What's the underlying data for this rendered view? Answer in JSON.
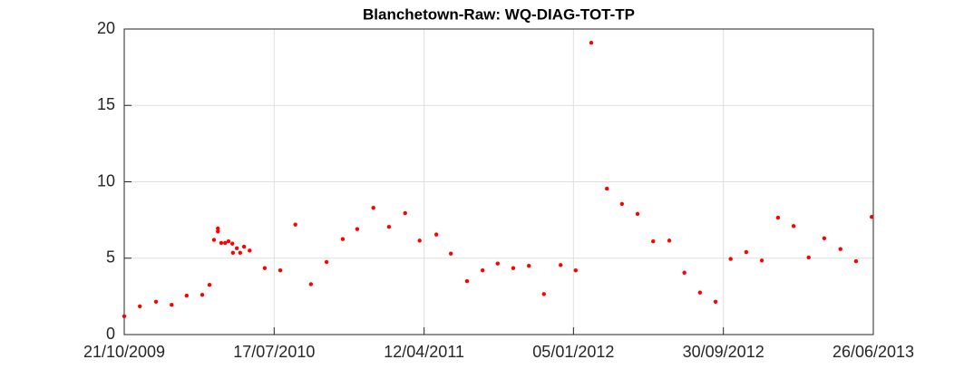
{
  "chart_data": {
    "type": "scatter",
    "title": "Blanchetown-Raw: WQ-DIAG-TOT-TP",
    "x": [
      "2009-10-21",
      "2009-11-18",
      "2009-12-17",
      "2010-01-14",
      "2010-02-10",
      "2010-03-10",
      "2010-03-23",
      "2010-03-31",
      "2010-04-07",
      "2010-04-07",
      "2010-04-13",
      "2010-04-20",
      "2010-04-26",
      "2010-05-03",
      "2010-05-04",
      "2010-05-11",
      "2010-05-17",
      "2010-05-24",
      "2010-06-03",
      "2010-06-30",
      "2010-07-28",
      "2010-08-24",
      "2010-09-21",
      "2010-10-19",
      "2010-11-17",
      "2010-12-13",
      "2011-01-11",
      "2011-02-08",
      "2011-03-09",
      "2011-04-04",
      "2011-05-04",
      "2011-05-30",
      "2011-06-28",
      "2011-07-26",
      "2011-08-22",
      "2011-09-19",
      "2011-10-17",
      "2011-11-13",
      "2011-12-13",
      "2012-01-09",
      "2012-02-06",
      "2012-03-05",
      "2012-04-01",
      "2012-04-29",
      "2012-05-27",
      "2012-06-25",
      "2012-07-22",
      "2012-08-19",
      "2012-09-16",
      "2012-10-13",
      "2012-11-10",
      "2012-12-08",
      "2013-01-06",
      "2013-02-03",
      "2013-03-02",
      "2013-03-30",
      "2013-04-28",
      "2013-05-26",
      "2013-06-23"
    ],
    "values": [
      1.2,
      1.85,
      2.15,
      1.95,
      2.55,
      2.6,
      3.25,
      6.2,
      6.95,
      6.75,
      6.0,
      6.0,
      6.1,
      5.95,
      5.35,
      5.65,
      5.35,
      5.75,
      5.5,
      4.35,
      4.2,
      7.2,
      3.3,
      4.75,
      6.25,
      6.9,
      8.3,
      7.05,
      7.95,
      6.15,
      6.55,
      5.3,
      3.5,
      4.2,
      4.65,
      4.35,
      4.5,
      2.65,
      4.55,
      4.2,
      19.1,
      9.55,
      8.55,
      7.9,
      6.1,
      6.15,
      4.05,
      2.75,
      2.15,
      4.95,
      5.4,
      4.85,
      7.65,
      7.1,
      5.05,
      6.3,
      5.6,
      4.8,
      7.7
    ],
    "color": "#ff0000",
    "xlim": [
      "2009-10-21",
      "2013-06-26"
    ],
    "xticks": [
      {
        "value": "2009-10-21",
        "label": "21/10/2009"
      },
      {
        "value": "2010-07-17",
        "label": "17/07/2010"
      },
      {
        "value": "2011-04-12",
        "label": "12/04/2011"
      },
      {
        "value": "2012-01-05",
        "label": "05/01/2012"
      },
      {
        "value": "2012-09-30",
        "label": "30/09/2012"
      },
      {
        "value": "2013-06-26",
        "label": "26/06/2013"
      }
    ],
    "ylim": [
      0,
      20
    ],
    "yticks": [
      0,
      5,
      10,
      15,
      20
    ],
    "grid": true
  }
}
